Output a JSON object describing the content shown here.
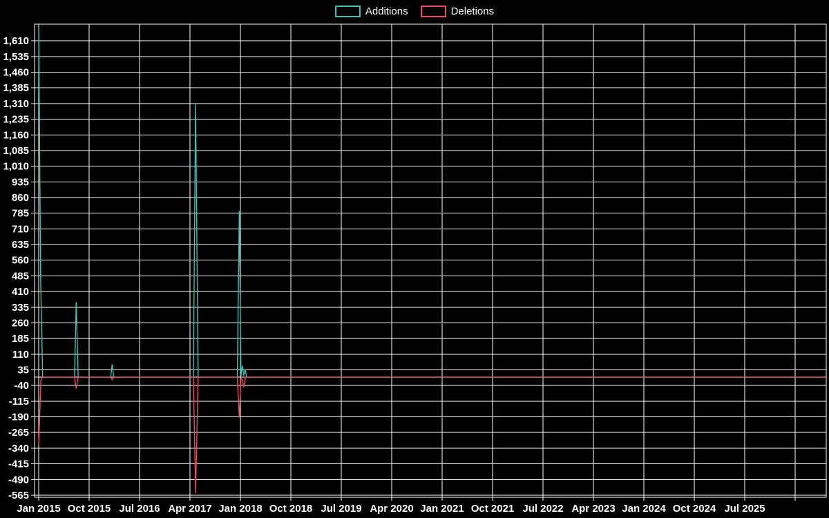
{
  "legend": {
    "items": [
      {
        "label": "Additions",
        "color": "#41c1b5"
      },
      {
        "label": "Deletions",
        "color": "#ee4b5e"
      }
    ]
  },
  "chart_data": {
    "type": "line",
    "title": "",
    "xlabel": "",
    "ylabel": "",
    "background": "#000000",
    "grid": true,
    "grid_color": "#ffffff",
    "text_color": "#ffffff",
    "legend_position": "top-center",
    "x_axis": {
      "unit": "months-since-Jan-2015",
      "tick_interval_months": 9,
      "tick_labels": [
        "Jan 2015",
        "Oct 2015",
        "Jul 2016",
        "Apr 2017",
        "Jan 2018",
        "Oct 2018",
        "Jul 2019",
        "Apr 2020",
        "Jan 2021",
        "Oct 2021",
        "Jul 2022",
        "Apr 2023",
        "Jan 2024",
        "Oct 2024",
        "Jul 2025"
      ],
      "gridline_count": 16,
      "domain_months": [
        0,
        140.5
      ]
    },
    "y_axis": {
      "tick_step": 75,
      "tick_values": [
        1610,
        1535,
        1460,
        1385,
        1310,
        1235,
        1160,
        1085,
        1010,
        935,
        860,
        785,
        710,
        635,
        560,
        485,
        410,
        335,
        260,
        185,
        110,
        35,
        -40,
        -115,
        -190,
        -265,
        -340,
        -415,
        -490,
        -565
      ],
      "tick_labels": [
        "1,610",
        "1,535",
        "1,460",
        "1,385",
        "1,310",
        "1,235",
        "1,160",
        "1,085",
        "1,010",
        "935",
        "860",
        "785",
        "710",
        "635",
        "560",
        "485",
        "410",
        "335",
        "260",
        "185",
        "110",
        "35",
        "-40",
        "-115",
        "-190",
        "-265",
        "-340",
        "-415",
        "-490",
        "-565"
      ],
      "ylim": [
        -575,
        1690
      ]
    },
    "series": [
      {
        "name": "Additions",
        "color": "#41c1b5",
        "points": [
          [
            0,
            1675
          ],
          [
            0.35,
            485
          ],
          [
            0.7,
            0
          ],
          [
            6.4,
            0
          ],
          [
            6.7,
            360
          ],
          [
            7.05,
            0
          ],
          [
            12.85,
            0
          ],
          [
            13.1,
            62
          ],
          [
            13.4,
            0
          ],
          [
            27.6,
            0
          ],
          [
            28.0,
            1310
          ],
          [
            28.45,
            0
          ],
          [
            35.45,
            0
          ],
          [
            35.8,
            795
          ],
          [
            36.1,
            5
          ],
          [
            36.35,
            55
          ],
          [
            36.6,
            8
          ],
          [
            36.85,
            38
          ],
          [
            37.1,
            0
          ],
          [
            140.5,
            0
          ]
        ]
      },
      {
        "name": "Deletions",
        "color": "#ee4b5e",
        "points": [
          [
            0,
            -325
          ],
          [
            0.4,
            -15
          ],
          [
            0.7,
            0
          ],
          [
            6.4,
            0
          ],
          [
            6.7,
            -55
          ],
          [
            7.05,
            0
          ],
          [
            12.85,
            0
          ],
          [
            13.1,
            -12
          ],
          [
            13.4,
            0
          ],
          [
            27.6,
            0
          ],
          [
            28.0,
            -555
          ],
          [
            28.45,
            0
          ],
          [
            35.45,
            0
          ],
          [
            35.8,
            -192
          ],
          [
            36.1,
            -5
          ],
          [
            36.35,
            -12
          ],
          [
            36.6,
            -48
          ],
          [
            36.9,
            0
          ],
          [
            140.5,
            0
          ]
        ]
      }
    ]
  }
}
